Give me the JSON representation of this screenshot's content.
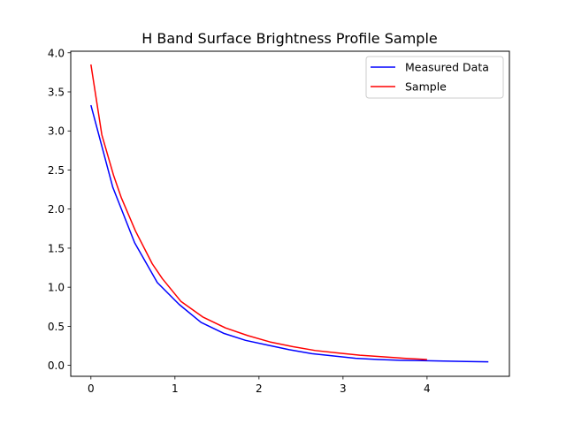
{
  "chart_data": {
    "type": "line",
    "title": "H Band Surface Brightness Profile Sample",
    "xlabel": "",
    "ylabel": "",
    "xlim": [
      -0.24,
      4.98
    ],
    "ylim": [
      -0.14,
      4.02
    ],
    "x_ticks": [
      0,
      1,
      2,
      3,
      4
    ],
    "x_tick_labels": [
      "0",
      "1",
      "2",
      "3",
      "4"
    ],
    "y_ticks": [
      0.0,
      0.5,
      1.0,
      1.5,
      2.0,
      2.5,
      3.0,
      3.5,
      4.0
    ],
    "y_tick_labels": [
      "0.0",
      "0.5",
      "1.0",
      "1.5",
      "2.0",
      "2.5",
      "3.0",
      "3.5",
      "4.0"
    ],
    "grid": false,
    "legend_position": "top-right",
    "series": [
      {
        "name": "Measured Data",
        "color": "#0000ff",
        "x": [
          0,
          0.26,
          0.52,
          0.79,
          1.05,
          1.31,
          1.58,
          1.84,
          2.1,
          2.36,
          2.63,
          2.89,
          3.15,
          3.42,
          3.68,
          3.94,
          4.2,
          4.47,
          4.73
        ],
        "y": [
          3.33,
          2.28,
          1.57,
          1.06,
          0.78,
          0.55,
          0.41,
          0.32,
          0.26,
          0.2,
          0.15,
          0.12,
          0.09,
          0.075,
          0.065,
          0.06,
          0.055,
          0.05,
          0.045
        ]
      },
      {
        "name": "Sample",
        "color": "#ff0000",
        "x": [
          0,
          0.13,
          0.27,
          0.36,
          0.53,
          0.73,
          0.85,
          1.07,
          1.33,
          1.6,
          1.87,
          2.13,
          2.4,
          2.67,
          2.93,
          3.2,
          3.47,
          3.73,
          4.0
        ],
        "y": [
          3.85,
          2.95,
          2.43,
          2.15,
          1.72,
          1.3,
          1.11,
          0.82,
          0.62,
          0.48,
          0.38,
          0.3,
          0.24,
          0.19,
          0.16,
          0.13,
          0.11,
          0.09,
          0.075
        ]
      }
    ]
  }
}
